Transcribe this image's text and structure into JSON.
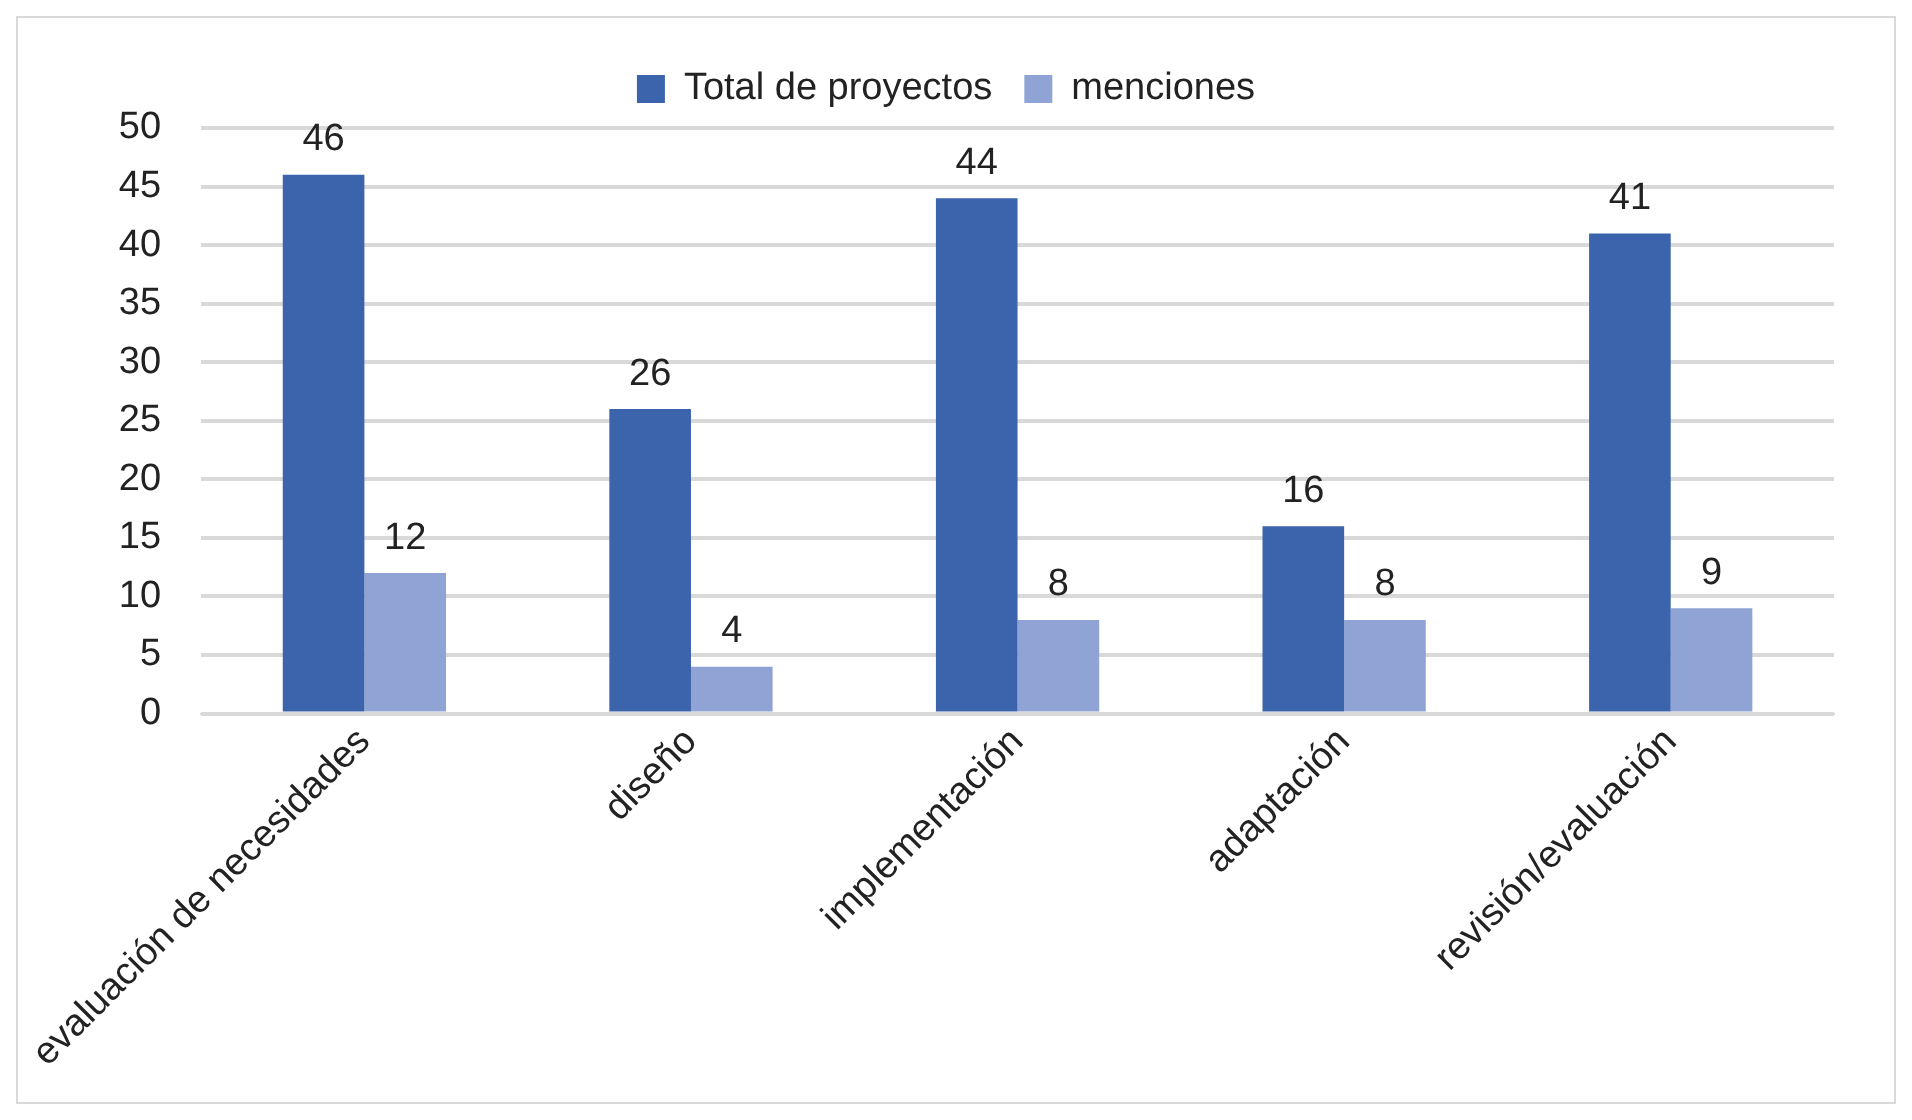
{
  "chart_data": {
    "type": "bar",
    "categories": [
      "evaluación de necesidades",
      "diseño",
      "implementación",
      "adaptación",
      "revisión/evaluación"
    ],
    "series": [
      {
        "name": "Total de proyectos",
        "color": "#3c64ad",
        "values": [
          46,
          26,
          44,
          16,
          41
        ]
      },
      {
        "name": "menciones",
        "color": "#8fa4d4",
        "values": [
          12,
          4,
          8,
          8,
          9
        ]
      }
    ],
    "ylim": [
      0,
      50
    ],
    "yticks": [
      0,
      5,
      10,
      15,
      20,
      25,
      30,
      35,
      40,
      45,
      50
    ],
    "grid": "y",
    "legend": "top",
    "data_labels": true
  }
}
